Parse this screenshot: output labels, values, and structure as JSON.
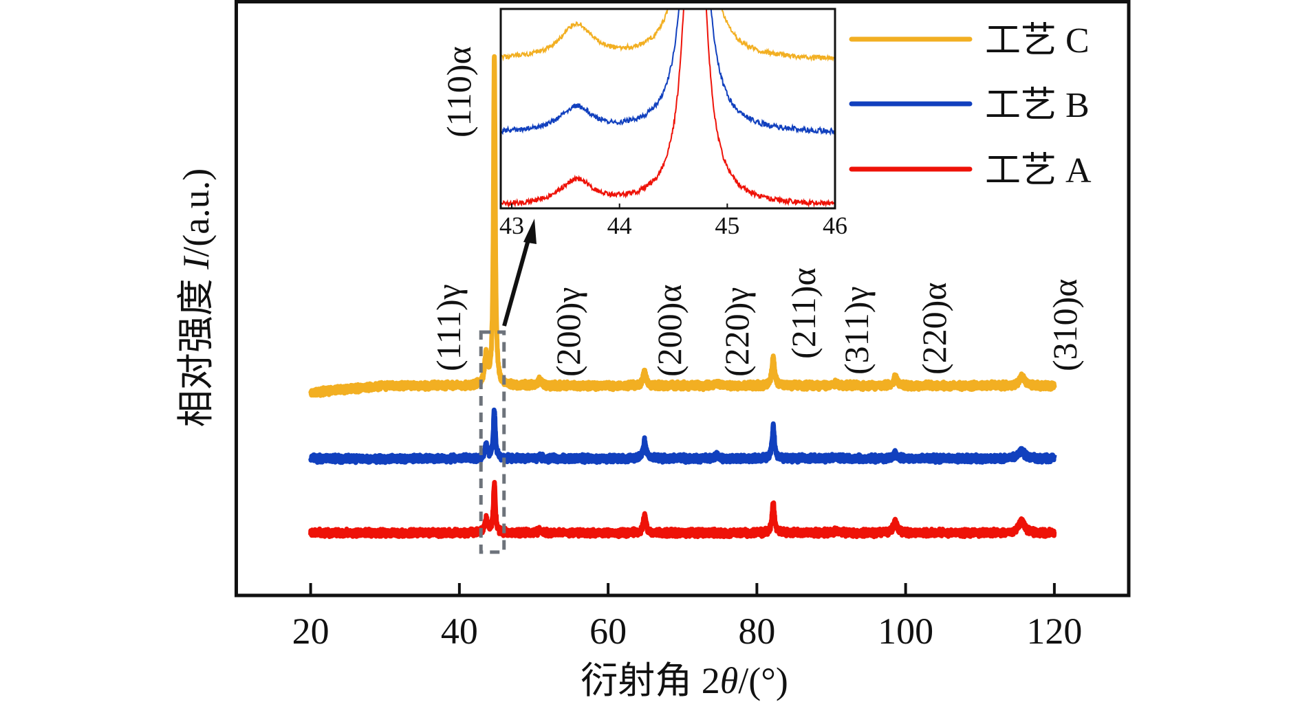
{
  "chart_data": {
    "type": "line",
    "title": "",
    "xlabel": "衍射角 2θ/(°)",
    "xlabel_parts": {
      "prefix": "衍射角 2",
      "theta": "θ",
      "suffix": "/(°)"
    },
    "ylabel": "相对强度 I/(a.u.)",
    "ylabel_parts": {
      "prefix": "相对强度 ",
      "italic": "I",
      "suffix": "/(a.u.)"
    },
    "xlim": [
      10,
      130
    ],
    "ylim": [
      0,
      10
    ],
    "xticks": [
      20,
      40,
      60,
      80,
      100,
      120
    ],
    "xtick_labels": [
      "20",
      "40",
      "60",
      "80",
      "100",
      "120"
    ],
    "y_ticks_shown": false,
    "grid": false,
    "legend_placement": "top-right",
    "x_range_data": [
      20,
      120
    ],
    "series": [
      {
        "name": "工艺 C",
        "color": "#F2AF22",
        "offset": 4.8,
        "peaks": [
          {
            "x": 43.6,
            "height": 0.85,
            "width": 0.25
          },
          {
            "x": 44.7,
            "height": 9.6,
            "width": 0.14
          },
          {
            "x": 50.8,
            "height": 0.2,
            "width": 0.25
          },
          {
            "x": 64.9,
            "height": 0.4,
            "width": 0.25
          },
          {
            "x": 74.6,
            "height": 0.08,
            "width": 0.3
          },
          {
            "x": 82.2,
            "height": 0.82,
            "width": 0.22
          },
          {
            "x": 90.6,
            "height": 0.06,
            "width": 0.4
          },
          {
            "x": 98.6,
            "height": 0.22,
            "width": 0.3
          },
          {
            "x": 115.6,
            "height": 0.25,
            "width": 0.45
          }
        ]
      },
      {
        "name": "工艺 B",
        "color": "#1140BE",
        "offset": 2.45,
        "peaks": [
          {
            "x": 43.6,
            "height": 0.4,
            "width": 0.22
          },
          {
            "x": 44.7,
            "height": 1.4,
            "width": 0.16
          },
          {
            "x": 50.8,
            "height": 0.08,
            "width": 0.25
          },
          {
            "x": 64.9,
            "height": 0.5,
            "width": 0.22
          },
          {
            "x": 74.6,
            "height": 0.1,
            "width": 0.3
          },
          {
            "x": 82.2,
            "height": 0.9,
            "width": 0.2
          },
          {
            "x": 90.6,
            "height": 0.05,
            "width": 0.4
          },
          {
            "x": 98.6,
            "height": 0.14,
            "width": 0.3
          },
          {
            "x": 115.6,
            "height": 0.24,
            "width": 0.45
          }
        ]
      },
      {
        "name": "工艺 A",
        "color": "#EE1208",
        "offset": 0.0,
        "peaks": [
          {
            "x": 43.6,
            "height": 0.4,
            "width": 0.22
          },
          {
            "x": 44.7,
            "height": 1.4,
            "width": 0.16
          },
          {
            "x": 50.8,
            "height": 0.07,
            "width": 0.25
          },
          {
            "x": 64.9,
            "height": 0.5,
            "width": 0.22
          },
          {
            "x": 82.2,
            "height": 0.9,
            "width": 0.2
          },
          {
            "x": 90.6,
            "height": 0.05,
            "width": 0.4
          },
          {
            "x": 98.6,
            "height": 0.33,
            "width": 0.3
          },
          {
            "x": 115.6,
            "height": 0.35,
            "width": 0.45
          }
        ]
      }
    ],
    "peak_labels": [
      {
        "text": "(111)γ",
        "x": 43.6
      },
      {
        "text": "(110)α",
        "x": 44.7
      },
      {
        "text": "(200)γ",
        "x": 50.8
      },
      {
        "text": "(200)α",
        "x": 64.9
      },
      {
        "text": "(220)γ",
        "x": 74.6
      },
      {
        "text": "(211)α",
        "x": 82.2
      },
      {
        "text": "(311)γ",
        "x": 90.6
      },
      {
        "text": "(220)α",
        "x": 98.6
      },
      {
        "text": "(310)α",
        "x": 115.6
      }
    ],
    "zoom_box_xrange": [
      42.9,
      46.0
    ],
    "inset": {
      "xlim": [
        42.9,
        46
      ],
      "xticks": [
        43,
        44,
        45,
        46
      ],
      "xtick_labels": [
        "43",
        "44",
        "45",
        "46"
      ],
      "note": ""
    }
  }
}
